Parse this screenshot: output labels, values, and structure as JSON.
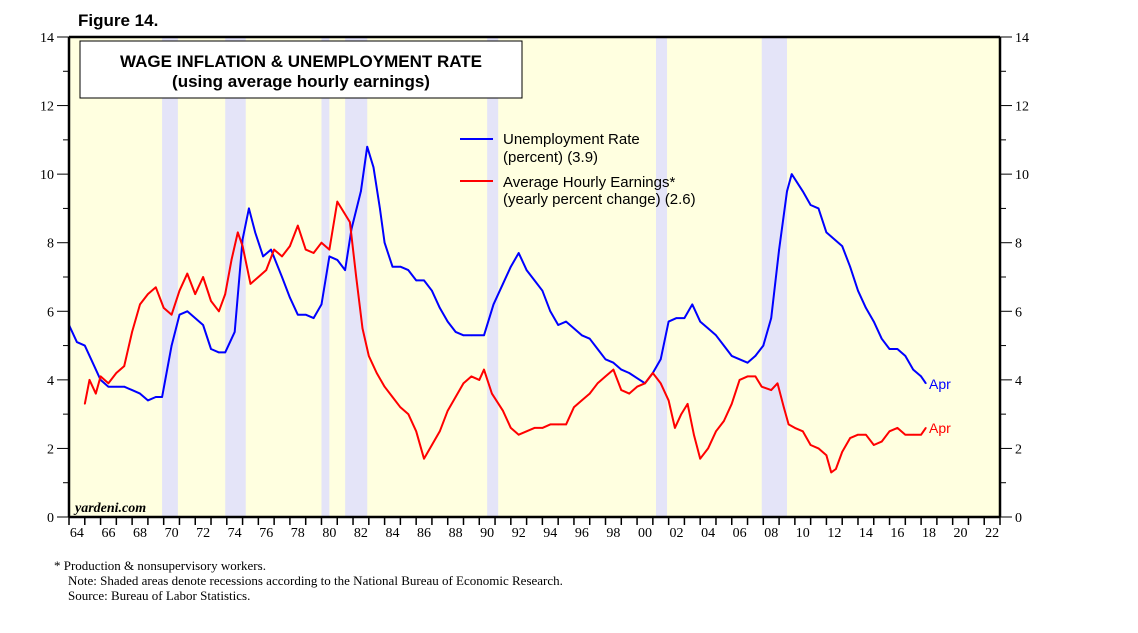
{
  "figure_label": "Figure 14.",
  "watermark": "yardeni.com",
  "notes": {
    "footnote": "*  Production & nonsupervisory workers.",
    "note": "Note: Shaded areas denote recessions according to the National Bureau of Economic Research.",
    "source": "Source: Bureau of Labor Statistics."
  },
  "colors": {
    "plot_bg": "#ffffe0",
    "recession": "#e4e4f8",
    "unemployment": "#0000ff",
    "earnings": "#ff0000"
  },
  "chart_data": {
    "type": "line",
    "title": "WAGE INFLATION & UNEMPLOYMENT RATE",
    "subtitle": "(using average hourly earnings)",
    "xlim": [
      1964,
      2023
    ],
    "ylim": [
      0,
      14
    ],
    "y_ticks": [
      "0",
      "2",
      "4",
      "6",
      "8",
      "10",
      "12",
      "14"
    ],
    "x_tick_labels": [
      "64",
      "66",
      "68",
      "70",
      "72",
      "74",
      "76",
      "78",
      "80",
      "82",
      "84",
      "86",
      "88",
      "90",
      "92",
      "94",
      "96",
      "98",
      "00",
      "02",
      "04",
      "06",
      "08",
      "10",
      "12",
      "14",
      "16",
      "18",
      "20",
      "22"
    ],
    "recessions": [
      [
        1969.9,
        1970.9
      ],
      [
        1973.9,
        1975.2
      ],
      [
        1980.0,
        1980.5
      ],
      [
        1981.5,
        1982.9
      ],
      [
        1990.5,
        1991.2
      ],
      [
        2001.2,
        2001.9
      ],
      [
        2007.9,
        2009.5
      ]
    ],
    "legend_placement": "top-center",
    "series": [
      {
        "name": "Unemployment Rate",
        "legend": [
          "Unemployment Rate",
          "(percent) (3.9)"
        ],
        "end_label": "Apr",
        "color": "#0000ff",
        "x": [
          1964.0,
          1964.5,
          1965.0,
          1965.5,
          1966.0,
          1966.5,
          1967.0,
          1967.5,
          1968.0,
          1968.5,
          1969.0,
          1969.5,
          1969.9,
          1970.5,
          1971.0,
          1971.5,
          1972.0,
          1972.5,
          1973.0,
          1973.5,
          1973.9,
          1974.5,
          1975.0,
          1975.4,
          1975.8,
          1976.3,
          1976.8,
          1977.5,
          1978.0,
          1978.5,
          1979.0,
          1979.5,
          1980.0,
          1980.5,
          1981.0,
          1981.5,
          1981.9,
          1982.5,
          1982.9,
          1983.3,
          1983.7,
          1984.0,
          1984.5,
          1985.0,
          1985.5,
          1986.0,
          1986.5,
          1987.0,
          1987.5,
          1988.0,
          1988.5,
          1989.0,
          1989.5,
          1990.3,
          1990.9,
          1991.5,
          1992.0,
          1992.5,
          1993.0,
          1993.5,
          1994.0,
          1994.5,
          1995.0,
          1995.5,
          1996.0,
          1996.5,
          1997.0,
          1997.5,
          1998.0,
          1998.5,
          1999.0,
          1999.5,
          2000.5,
          2001.0,
          2001.5,
          2002.0,
          2002.5,
          2003.0,
          2003.5,
          2004.0,
          2004.5,
          2005.0,
          2005.5,
          2006.0,
          2006.5,
          2007.0,
          2007.5,
          2008.0,
          2008.5,
          2009.0,
          2009.5,
          2009.8,
          2010.5,
          2011.0,
          2011.5,
          2012.0,
          2012.5,
          2013.0,
          2013.5,
          2014.0,
          2014.5,
          2015.0,
          2015.5,
          2016.0,
          2016.5,
          2017.0,
          2017.5,
          2018.0,
          2018.3
        ],
        "values": [
          5.6,
          5.1,
          5.0,
          4.5,
          4.0,
          3.8,
          3.8,
          3.8,
          3.7,
          3.6,
          3.4,
          3.5,
          3.5,
          5.0,
          5.9,
          6.0,
          5.8,
          5.6,
          4.9,
          4.8,
          4.8,
          5.4,
          8.1,
          9.0,
          8.3,
          7.6,
          7.8,
          7.0,
          6.4,
          5.9,
          5.9,
          5.8,
          6.2,
          7.6,
          7.5,
          7.2,
          8.4,
          9.5,
          10.8,
          10.2,
          9.0,
          8.0,
          7.3,
          7.3,
          7.2,
          6.9,
          6.9,
          6.6,
          6.1,
          5.7,
          5.4,
          5.3,
          5.3,
          5.3,
          6.2,
          6.8,
          7.3,
          7.7,
          7.2,
          6.9,
          6.6,
          6.0,
          5.6,
          5.7,
          5.5,
          5.3,
          5.2,
          4.9,
          4.6,
          4.5,
          4.3,
          4.2,
          3.9,
          4.2,
          4.6,
          5.7,
          5.8,
          5.8,
          6.2,
          5.7,
          5.5,
          5.3,
          5.0,
          4.7,
          4.6,
          4.5,
          4.7,
          5.0,
          5.8,
          7.8,
          9.5,
          10.0,
          9.5,
          9.1,
          9.0,
          8.3,
          8.1,
          7.9,
          7.3,
          6.6,
          6.1,
          5.7,
          5.2,
          4.9,
          4.9,
          4.7,
          4.3,
          4.1,
          3.9
        ]
      },
      {
        "name": "Average Hourly Earnings*",
        "legend": [
          "Average Hourly Earnings*",
          "(yearly percent change) (2.6)"
        ],
        "end_label": "Apr",
        "color": "#ff0000",
        "x": [
          1965.0,
          1965.3,
          1965.7,
          1966.0,
          1966.5,
          1967.0,
          1967.5,
          1968.0,
          1968.5,
          1969.0,
          1969.5,
          1970.0,
          1970.5,
          1971.0,
          1971.5,
          1972.0,
          1972.5,
          1973.0,
          1973.5,
          1973.9,
          1974.3,
          1974.7,
          1975.0,
          1975.5,
          1976.0,
          1976.5,
          1977.0,
          1977.5,
          1978.0,
          1978.5,
          1979.0,
          1979.5,
          1980.0,
          1980.5,
          1981.0,
          1981.4,
          1981.8,
          1982.2,
          1982.6,
          1983.0,
          1983.5,
          1984.0,
          1984.5,
          1985.0,
          1985.5,
          1986.0,
          1986.5,
          1987.0,
          1987.5,
          1988.0,
          1988.5,
          1989.0,
          1989.5,
          1990.0,
          1990.3,
          1990.8,
          1991.5,
          1992.0,
          1992.5,
          1993.0,
          1993.5,
          1994.0,
          1994.5,
          1995.0,
          1995.5,
          1996.0,
          1996.5,
          1997.0,
          1997.5,
          1998.0,
          1998.5,
          1999.0,
          1999.5,
          2000.0,
          2000.5,
          2001.0,
          2001.5,
          2002.0,
          2002.4,
          2002.8,
          2003.2,
          2003.6,
          2004.0,
          2004.5,
          2005.0,
          2005.5,
          2006.0,
          2006.5,
          2007.0,
          2007.5,
          2007.9,
          2008.5,
          2008.9,
          2009.3,
          2009.6,
          2010.0,
          2010.5,
          2011.0,
          2011.5,
          2012.0,
          2012.3,
          2012.6,
          2013.0,
          2013.5,
          2014.0,
          2014.5,
          2015.0,
          2015.5,
          2016.0,
          2016.5,
          2017.0,
          2017.5,
          2018.0,
          2018.3
        ],
        "values": [
          3.3,
          4.0,
          3.6,
          4.1,
          3.9,
          4.2,
          4.4,
          5.4,
          6.2,
          6.5,
          6.7,
          6.1,
          5.9,
          6.6,
          7.1,
          6.5,
          7.0,
          6.3,
          6.0,
          6.5,
          7.5,
          8.3,
          7.9,
          6.8,
          7.0,
          7.2,
          7.8,
          7.6,
          7.9,
          8.5,
          7.8,
          7.7,
          8.0,
          7.8,
          9.2,
          8.9,
          8.6,
          7.0,
          5.5,
          4.7,
          4.2,
          3.8,
          3.5,
          3.2,
          3.0,
          2.5,
          1.7,
          2.1,
          2.5,
          3.1,
          3.5,
          3.9,
          4.1,
          4.0,
          4.3,
          3.6,
          3.1,
          2.6,
          2.4,
          2.5,
          2.6,
          2.6,
          2.7,
          2.7,
          2.7,
          3.2,
          3.4,
          3.6,
          3.9,
          4.1,
          4.3,
          3.7,
          3.6,
          3.8,
          3.9,
          4.2,
          3.9,
          3.4,
          2.6,
          3.0,
          3.3,
          2.4,
          1.7,
          2.0,
          2.5,
          2.8,
          3.3,
          4.0,
          4.1,
          4.1,
          3.8,
          3.7,
          3.9,
          3.2,
          2.7,
          2.6,
          2.5,
          2.1,
          2.0,
          1.8,
          1.3,
          1.4,
          1.9,
          2.3,
          2.4,
          2.4,
          2.1,
          2.2,
          2.5,
          2.6,
          2.4,
          2.4,
          2.4,
          2.6
        ]
      }
    ]
  }
}
